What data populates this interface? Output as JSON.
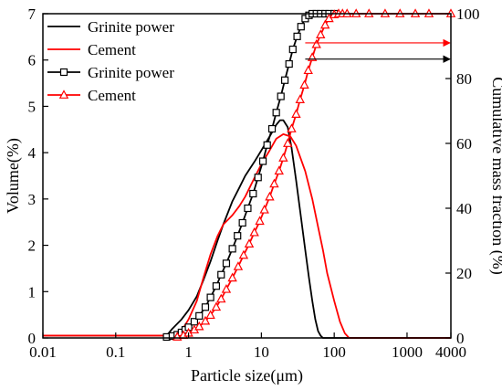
{
  "chart_data": {
    "type": "line",
    "xlabel": "Particle size(μm)",
    "ylabel_left": "Volume(%)",
    "ylabel_right": "Cumulative mass fraction (%)",
    "x_scale": "log",
    "xlim": [
      0.01,
      4000
    ],
    "ylim_left": [
      0,
      7
    ],
    "ylim_right": [
      0,
      100
    ],
    "x_ticks": [
      0.01,
      0.1,
      1,
      10,
      100,
      1000,
      4000
    ],
    "x_tick_labels": [
      "0.01",
      "0.1",
      "1",
      "10",
      "100",
      "1000",
      "4000"
    ],
    "y_ticks_left": [
      0,
      1,
      2,
      3,
      4,
      5,
      6,
      7
    ],
    "y_tick_labels_left": [
      "0",
      "1",
      "2",
      "3",
      "4",
      "5",
      "6",
      "7"
    ],
    "y_ticks_right": [
      0,
      20,
      40,
      60,
      80,
      100
    ],
    "y_tick_labels_right": [
      "0",
      "20",
      "40",
      "60",
      "80",
      "100"
    ],
    "grid": false,
    "legend_position": "top-left",
    "series": [
      {
        "name": "Grinite power",
        "axis": "left",
        "color": "#000000",
        "marker": "none",
        "points": [
          [
            0.01,
            0.05
          ],
          [
            0.5,
            0.05
          ],
          [
            0.6,
            0.2
          ],
          [
            0.8,
            0.4
          ],
          [
            1,
            0.6
          ],
          [
            1.3,
            0.9
          ],
          [
            1.6,
            1.25
          ],
          [
            2,
            1.65
          ],
          [
            2.5,
            2.1
          ],
          [
            3,
            2.45
          ],
          [
            4,
            2.95
          ],
          [
            5,
            3.25
          ],
          [
            6,
            3.5
          ],
          [
            8,
            3.8
          ],
          [
            10,
            4.05
          ],
          [
            13,
            4.35
          ],
          [
            16,
            4.6
          ],
          [
            18,
            4.7
          ],
          [
            20,
            4.7
          ],
          [
            23,
            4.55
          ],
          [
            26,
            4.1
          ],
          [
            30,
            3.4
          ],
          [
            35,
            2.6
          ],
          [
            40,
            1.9
          ],
          [
            45,
            1.3
          ],
          [
            50,
            0.8
          ],
          [
            55,
            0.4
          ],
          [
            60,
            0.15
          ],
          [
            65,
            0.05
          ],
          [
            70,
            0.0
          ],
          [
            4000,
            0.0
          ]
        ]
      },
      {
        "name": "Cement",
        "axis": "left",
        "color": "#ff0000",
        "marker": "none",
        "points": [
          [
            0.01,
            0.05
          ],
          [
            0.7,
            0.05
          ],
          [
            0.8,
            0.15
          ],
          [
            1,
            0.4
          ],
          [
            1.3,
            0.8
          ],
          [
            1.6,
            1.3
          ],
          [
            2,
            1.8
          ],
          [
            2.5,
            2.2
          ],
          [
            3,
            2.45
          ],
          [
            4,
            2.65
          ],
          [
            5,
            2.85
          ],
          [
            6,
            3.05
          ],
          [
            8,
            3.45
          ],
          [
            10,
            3.75
          ],
          [
            13,
            4.05
          ],
          [
            16,
            4.3
          ],
          [
            20,
            4.4
          ],
          [
            25,
            4.35
          ],
          [
            30,
            4.15
          ],
          [
            40,
            3.6
          ],
          [
            50,
            3.0
          ],
          [
            60,
            2.4
          ],
          [
            70,
            1.9
          ],
          [
            80,
            1.4
          ],
          [
            100,
            0.8
          ],
          [
            120,
            0.35
          ],
          [
            140,
            0.1
          ],
          [
            160,
            0.0
          ],
          [
            4000,
            0.0
          ]
        ]
      },
      {
        "name": "Grinite power",
        "axis": "right",
        "color": "#000000",
        "marker": "square",
        "points": [
          [
            0.5,
            0.3
          ],
          [
            0.6,
            0.6
          ],
          [
            0.7,
            1.0
          ],
          [
            0.8,
            1.7
          ],
          [
            0.9,
            2.5
          ],
          [
            1.0,
            3.3
          ],
          [
            1.2,
            5.0
          ],
          [
            1.4,
            6.8
          ],
          [
            1.7,
            9.5
          ],
          [
            2.0,
            12.5
          ],
          [
            2.4,
            16.0
          ],
          [
            2.8,
            19.5
          ],
          [
            3.3,
            23.0
          ],
          [
            4.0,
            27.5
          ],
          [
            4.7,
            31.5
          ],
          [
            5.5,
            35.5
          ],
          [
            6.5,
            40.0
          ],
          [
            7.7,
            44.5
          ],
          [
            9.0,
            49.5
          ],
          [
            10.5,
            54.5
          ],
          [
            12,
            59.5
          ],
          [
            14,
            64.5
          ],
          [
            16,
            69.5
          ],
          [
            18.5,
            74.5
          ],
          [
            21,
            79.5
          ],
          [
            24,
            84.5
          ],
          [
            27,
            89.0
          ],
          [
            31,
            93.0
          ],
          [
            35,
            96.0
          ],
          [
            40,
            98.5
          ],
          [
            45,
            99.5
          ],
          [
            50,
            100
          ],
          [
            57,
            100
          ],
          [
            65,
            100
          ],
          [
            75,
            100
          ],
          [
            85,
            100
          ],
          [
            100,
            100
          ]
        ]
      },
      {
        "name": "Cement",
        "axis": "right",
        "color": "#ff0000",
        "marker": "triangle",
        "points": [
          [
            0.7,
            0.3
          ],
          [
            0.85,
            0.8
          ],
          [
            1.0,
            1.5
          ],
          [
            1.2,
            2.5
          ],
          [
            1.4,
            3.5
          ],
          [
            1.7,
            5.2
          ],
          [
            2.0,
            7.0
          ],
          [
            2.4,
            9.5
          ],
          [
            2.8,
            12.0
          ],
          [
            3.3,
            15.0
          ],
          [
            4.0,
            18.5
          ],
          [
            4.8,
            22.0
          ],
          [
            5.7,
            25.5
          ],
          [
            6.8,
            29.0
          ],
          [
            8.0,
            32.5
          ],
          [
            9.5,
            36.0
          ],
          [
            11,
            39.5
          ],
          [
            13,
            43.5
          ],
          [
            15,
            47.5
          ],
          [
            17.5,
            51.5
          ],
          [
            20,
            55.5
          ],
          [
            23,
            60.0
          ],
          [
            26,
            64.5
          ],
          [
            30,
            69.0
          ],
          [
            34,
            73.5
          ],
          [
            39,
            78.0
          ],
          [
            44,
            82.5
          ],
          [
            50,
            86.5
          ],
          [
            57,
            90.5
          ],
          [
            65,
            93.5
          ],
          [
            75,
            96.5
          ],
          [
            85,
            98.5
          ],
          [
            100,
            99.7
          ],
          [
            115,
            100
          ],
          [
            130,
            100
          ],
          [
            150,
            100
          ],
          [
            200,
            100
          ],
          [
            300,
            100
          ],
          [
            500,
            100
          ],
          [
            800,
            100
          ],
          [
            1300,
            100
          ],
          [
            2000,
            100
          ],
          [
            4000,
            100
          ]
        ]
      }
    ],
    "arrows": [
      {
        "color": "#ff0000",
        "from": [
          40,
          91
        ],
        "to": [
          4000,
          91
        ],
        "axis": "right"
      },
      {
        "color": "#000000",
        "from": [
          40,
          86
        ],
        "to": [
          4000,
          86
        ],
        "axis": "right"
      }
    ]
  }
}
